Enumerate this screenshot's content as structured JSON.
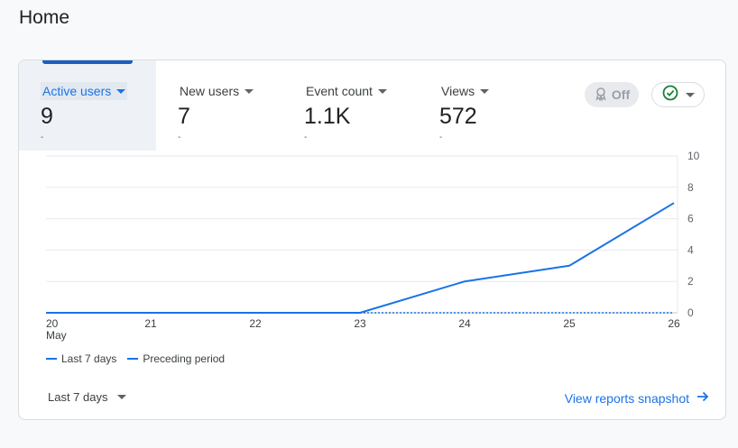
{
  "page": {
    "title": "Home"
  },
  "metrics": [
    {
      "label": "Active users",
      "value": "9",
      "delta": "-",
      "active": true
    },
    {
      "label": "New users",
      "value": "7",
      "delta": "-"
    },
    {
      "label": "Event count",
      "value": "1.1K",
      "delta": "-"
    },
    {
      "label": "Views",
      "value": "572",
      "delta": "-"
    }
  ],
  "controls": {
    "off_label": "Off",
    "off_icon": "ribbon-icon",
    "status_icon": "check-circle-icon"
  },
  "chart_data": {
    "type": "line",
    "x": [
      "20",
      "21",
      "22",
      "23",
      "24",
      "25",
      "26"
    ],
    "x_sublabels": [
      "May",
      "",
      "",
      "",
      "",
      "",
      ""
    ],
    "ylim": [
      0,
      10
    ],
    "y_ticks": [
      "0",
      "2",
      "4",
      "6",
      "8",
      "10"
    ],
    "series": [
      {
        "name": "Last 7 days",
        "values": [
          0,
          0,
          0,
          0,
          2,
          3,
          7
        ],
        "style": "solid",
        "color": "#1a73e8"
      },
      {
        "name": "Preceding period",
        "values": [
          null,
          null,
          null,
          0,
          0,
          0,
          0
        ],
        "style": "dashed",
        "color": "#1a73e8"
      }
    ],
    "grid": true,
    "legend_placement": "bottom-left"
  },
  "footer": {
    "range_label": "Last 7 days",
    "link_label": "View reports snapshot"
  },
  "colors": {
    "accent": "#1a73e8",
    "active_tab_bg": "#eef2f7",
    "status_green": "#188038"
  }
}
